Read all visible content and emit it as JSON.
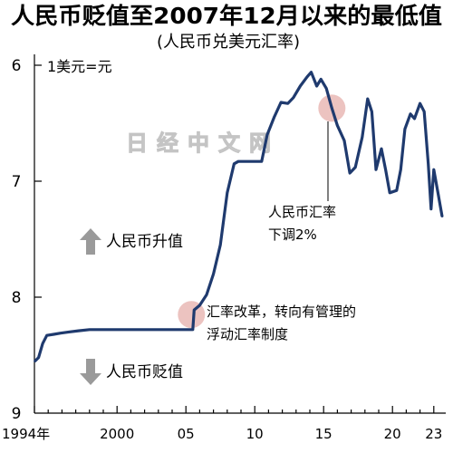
{
  "chart_data": {
    "type": "line",
    "title": "人民币贬值至2007年12月以来的最低值",
    "subtitle": "(人民币兑美元汇率)",
    "ylabel": "1美元=元",
    "xlabel": "",
    "y_inverted": true,
    "ylim": [
      6,
      9
    ],
    "yticks": [
      "6",
      "7",
      "8",
      "9"
    ],
    "xlim": [
      1994,
      2023.7
    ],
    "xticks": [
      {
        "value": 1994,
        "label": "1994年"
      },
      {
        "value": 2000,
        "label": "2000"
      },
      {
        "value": 2005,
        "label": "05"
      },
      {
        "value": 2010,
        "label": "10"
      },
      {
        "value": 2015,
        "label": "15"
      },
      {
        "value": 2020,
        "label": "20"
      },
      {
        "value": 2023,
        "label": "23"
      }
    ],
    "grid": false,
    "legend": "none",
    "series": [
      {
        "x": [
          1994.05,
          1994.3,
          1994.6,
          1994.9,
          1995.4,
          1995.9,
          1996.5,
          1997.2,
          1998,
          2000,
          2003,
          2005.5,
          2005.6,
          2006.0,
          2006.5,
          2007.0,
          2007.5,
          2008.0,
          2008.5,
          2008.8,
          2009.5,
          2010.5,
          2010.9,
          2011.4,
          2011.9,
          2012.4,
          2012.8,
          2013.3,
          2013.8,
          2014.1,
          2014.5,
          2014.8,
          2015.2,
          2015.6,
          2016.0,
          2016.5,
          2016.9,
          2017.3,
          2017.8,
          2018.2,
          2018.5,
          2018.8,
          2019.2,
          2019.5,
          2019.8,
          2020.3,
          2020.6,
          2020.9,
          2021.3,
          2021.6,
          2022.0,
          2022.3,
          2022.6,
          2022.8,
          2023.0,
          2023.3,
          2023.6
        ],
        "y": [
          8.55,
          8.52,
          8.4,
          8.33,
          8.32,
          8.31,
          8.3,
          8.29,
          8.28,
          8.28,
          8.28,
          8.28,
          8.11,
          8.07,
          7.98,
          7.8,
          7.55,
          7.1,
          6.85,
          6.83,
          6.83,
          6.83,
          6.6,
          6.45,
          6.32,
          6.33,
          6.28,
          6.18,
          6.1,
          6.06,
          6.18,
          6.12,
          6.2,
          6.37,
          6.52,
          6.65,
          6.93,
          6.88,
          6.62,
          6.29,
          6.4,
          6.9,
          6.72,
          6.9,
          7.1,
          7.08,
          6.9,
          6.55,
          6.42,
          6.46,
          6.33,
          6.4,
          6.85,
          7.24,
          6.9,
          7.1,
          7.3
        ]
      }
    ],
    "annotations": [
      {
        "x": 2005.4,
        "y": 8.15,
        "lines": [
          "汇率改革，转向有管理的",
          "浮动汇率制度"
        ]
      },
      {
        "x": 2015.6,
        "y": 6.37,
        "lines": [
          "人民币汇率",
          "下调2%"
        ]
      }
    ],
    "direction_labels": {
      "up": "人民币升值",
      "down": "人民币贬值"
    },
    "colors": {
      "line": "#1f3a6e",
      "highlight": "#e9b9b5",
      "arrow": "#9a9a9a"
    }
  },
  "watermark": "日经中文网",
  "icons": {
    "up": "up-arrow-icon",
    "down": "down-arrow-icon"
  }
}
